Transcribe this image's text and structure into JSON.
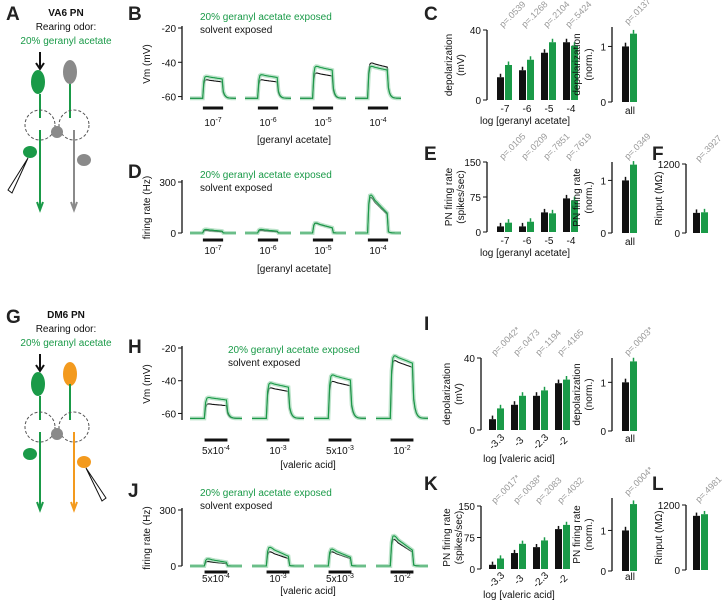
{
  "colors": {
    "green": "#1a9a48",
    "green_light": "#8fd1a6",
    "black": "#111111",
    "gray": "#8a8a8a",
    "orange": "#f39a1e",
    "pvalue": "#999999"
  },
  "panels": {
    "A": {
      "letter": "A",
      "neuron": "VA6 PN",
      "rearing": "Rearing odor:",
      "odor": "20% geranyl acetate"
    },
    "G": {
      "letter": "G",
      "neuron": "DM6 PN",
      "rearing": "Rearing odor:",
      "odor": "20% geranyl acetate"
    }
  },
  "legend": {
    "exposed": "20% geranyl acetate exposed",
    "solvent": "solvent exposed"
  },
  "chart_data": [
    {
      "id": "B",
      "type": "line",
      "letter": "B",
      "ylabel": "Vm (mV)",
      "yticks": [
        "-20",
        "-40",
        "-60"
      ],
      "ylim": [
        -62,
        -20
      ],
      "stimuli": [
        "10-7",
        "10-6",
        "10-5",
        "10-4"
      ],
      "xlabel": "[geranyl acetate]",
      "series": [
        {
          "name": "solvent exposed",
          "peaks": [
            -50,
            -50,
            -46,
            -40
          ]
        },
        {
          "name": "20% geranyl acetate exposed",
          "peaks": [
            -48,
            -47,
            -42,
            -42
          ]
        }
      ]
    },
    {
      "id": "D",
      "type": "line",
      "letter": "D",
      "ylabel": "firing rate (Hz)",
      "yticks": [
        "300",
        "0"
      ],
      "ylim": [
        0,
        300
      ],
      "stimuli": [
        "10-7",
        "10-6",
        "10-5",
        "10-4"
      ],
      "xlabel": "[geranyl acetate]",
      "series": [
        {
          "name": "solvent exposed",
          "peaks": [
            15,
            15,
            60,
            220
          ]
        },
        {
          "name": "20% geranyl acetate exposed",
          "peaks": [
            22,
            22,
            62,
            235
          ]
        }
      ]
    },
    {
      "id": "H",
      "type": "line",
      "letter": "H",
      "ylabel": "Vm (mV)",
      "yticks": [
        "-20",
        "-40",
        "-60"
      ],
      "ylim": [
        -64,
        -20
      ],
      "stimuli": [
        "5x10-4",
        "10-3",
        "5x10-3",
        "10-2"
      ],
      "xlabel": "[valeric acid]",
      "series": [
        {
          "name": "solvent exposed",
          "peaks": [
            -54,
            -44,
            -40,
            -27
          ]
        },
        {
          "name": "20% geranyl acetate exposed",
          "peaks": [
            -50,
            -41,
            -36,
            -24
          ]
        }
      ]
    },
    {
      "id": "J",
      "type": "line",
      "letter": "J",
      "ylabel": "firing rate (Hz)",
      "yticks": [
        "300",
        "0"
      ],
      "ylim": [
        0,
        300
      ],
      "stimuli": [
        "5x10-4",
        "10-3",
        "5x10-3",
        "10-2"
      ],
      "xlabel": "[valeric acid]",
      "series": [
        {
          "name": "solvent exposed",
          "peaks": [
            25,
            80,
            80,
            150
          ]
        },
        {
          "name": "20% geranyl acetate exposed",
          "peaks": [
            40,
            105,
            95,
            170
          ]
        }
      ]
    },
    {
      "id": "C",
      "type": "bar",
      "letter": "C",
      "ylabel": [
        "depolarization",
        "(mV)"
      ],
      "yticks": [
        "40",
        "0"
      ],
      "ylim": [
        0,
        40
      ],
      "categories": [
        "-7",
        "-6",
        "-5",
        "-4"
      ],
      "xlabel": "log [geranyl acetate]",
      "pvalues": [
        "p=.0539",
        "p=.1268",
        "p=.2104",
        "p=.5424"
      ],
      "series": [
        {
          "name": "solvent exposed",
          "values": [
            13,
            17,
            27,
            33
          ]
        },
        {
          "name": "20% geranyl acetate exposed",
          "values": [
            20,
            23,
            33,
            31
          ]
        }
      ]
    },
    {
      "id": "Cn",
      "type": "bar",
      "ylabel": [
        "depolarization",
        "(norm.)"
      ],
      "yticks": [
        "1",
        "0"
      ],
      "ylim": [
        0,
        1.35
      ],
      "categories": [
        "all"
      ],
      "pvalues": [
        "p=.0137"
      ],
      "series": [
        {
          "name": "solvent exposed",
          "values": [
            1.0
          ]
        },
        {
          "name": "20% geranyl acetate exposed",
          "values": [
            1.23
          ]
        }
      ]
    },
    {
      "id": "E",
      "type": "bar",
      "letter": "E",
      "ylabel": [
        "PN firing rate",
        "(spikes/sec)"
      ],
      "yticks": [
        "150",
        "75",
        "0"
      ],
      "ylim": [
        0,
        150
      ],
      "categories": [
        "-7",
        "-6",
        "-5",
        "-4"
      ],
      "xlabel": "log [geranyl acetate]",
      "pvalues": [
        "p=.0105",
        "p=.0209",
        "p=.7851",
        "p=.7619"
      ],
      "series": [
        {
          "name": "solvent exposed",
          "values": [
            12,
            12,
            42,
            72
          ]
        },
        {
          "name": "20% geranyl acetate exposed",
          "values": [
            20,
            22,
            40,
            68
          ]
        }
      ]
    },
    {
      "id": "En",
      "type": "bar",
      "ylabel": [
        "PN firing rate",
        "(norm.)"
      ],
      "yticks": [
        "1",
        "0"
      ],
      "ylim": [
        0,
        1.35
      ],
      "categories": [
        "all"
      ],
      "pvalues": [
        "p=.0349"
      ],
      "series": [
        {
          "name": "solvent exposed",
          "values": [
            1.0
          ]
        },
        {
          "name": "20% geranyl acetate exposed",
          "values": [
            1.3
          ]
        }
      ]
    },
    {
      "id": "F",
      "type": "bar",
      "letter": "F",
      "ylabel": [
        "Rinput (MΩ)"
      ],
      "yticks": [
        "1200",
        "0"
      ],
      "ylim": [
        0,
        1200
      ],
      "categories": [
        ""
      ],
      "pvalues": [
        "p=.3927"
      ],
      "series": [
        {
          "name": "solvent exposed",
          "values": [
            350
          ]
        },
        {
          "name": "20% geranyl acetate exposed",
          "values": [
            360
          ]
        }
      ]
    },
    {
      "id": "I",
      "type": "bar",
      "letter": "I",
      "ylabel": [
        "depolarization",
        "(mV)"
      ],
      "yticks": [
        "40",
        "0"
      ],
      "ylim": [
        0,
        40
      ],
      "categories": [
        "-3.3",
        "-3",
        "-2.3",
        "-2"
      ],
      "xlabel": "log [valeric acid]",
      "pvalues": [
        "p=.0042*",
        "p=.0473",
        "p=.1194",
        "p=.4165"
      ],
      "series": [
        {
          "name": "solvent exposed",
          "values": [
            6,
            14,
            19,
            26
          ]
        },
        {
          "name": "20% geranyl acetate exposed",
          "values": [
            12,
            19,
            22,
            28
          ]
        }
      ]
    },
    {
      "id": "In",
      "type": "bar",
      "ylabel": [
        "depolarization",
        "(norm.)"
      ],
      "yticks": [
        "1",
        "0"
      ],
      "ylim": [
        0,
        1.5
      ],
      "categories": [
        "all"
      ],
      "pvalues": [
        "p=.0003*"
      ],
      "series": [
        {
          "name": "solvent exposed",
          "values": [
            1.0
          ]
        },
        {
          "name": "20% geranyl acetate exposed",
          "values": [
            1.43
          ]
        }
      ]
    },
    {
      "id": "K",
      "type": "bar",
      "letter": "K",
      "ylabel": [
        "PN firing rate",
        "(spikes/sec)"
      ],
      "yticks": [
        "150",
        "75",
        "0"
      ],
      "ylim": [
        0,
        150
      ],
      "categories": [
        "-3.3",
        "-3",
        "-2.3",
        "-2"
      ],
      "xlabel": "log [valeric acid]",
      "pvalues": [
        "p=.0017*",
        "p=.0038*",
        "p=.2083",
        "p=.4032"
      ],
      "series": [
        {
          "name": "solvent exposed",
          "values": [
            10,
            38,
            52,
            95
          ]
        },
        {
          "name": "20% geranyl acetate exposed",
          "values": [
            25,
            60,
            68,
            105
          ]
        }
      ]
    },
    {
      "id": "Kn",
      "type": "bar",
      "ylabel": [
        "PN firing rate",
        "(norm.)"
      ],
      "yticks": [
        "1",
        "0"
      ],
      "ylim": [
        0,
        1.8
      ],
      "categories": [
        "all"
      ],
      "pvalues": [
        "p=.0004*"
      ],
      "series": [
        {
          "name": "solvent exposed",
          "values": [
            1.0
          ]
        },
        {
          "name": "20% geranyl acetate exposed",
          "values": [
            1.65
          ]
        }
      ]
    },
    {
      "id": "L",
      "type": "bar",
      "letter": "L",
      "ylabel": [
        "Rinput (MΩ)"
      ],
      "yticks": [
        "1200",
        "0"
      ],
      "ylim": [
        0,
        1200
      ],
      "categories": [
        ""
      ],
      "pvalues": [
        "p=.4981"
      ],
      "series": [
        {
          "name": "solvent exposed",
          "values": [
            1000
          ]
        },
        {
          "name": "20% geranyl acetate exposed",
          "values": [
            1030
          ]
        }
      ]
    }
  ]
}
